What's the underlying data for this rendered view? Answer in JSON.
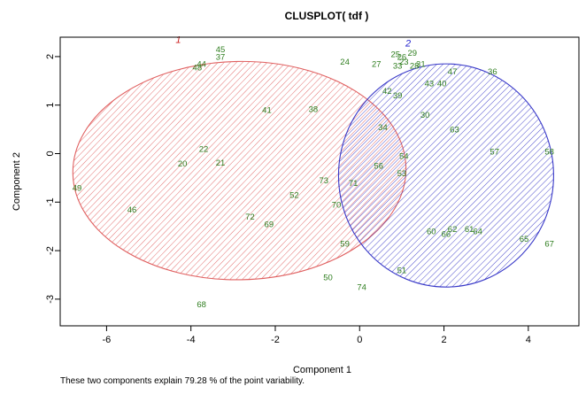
{
  "chart_data": {
    "type": "scatter",
    "title": "CLUSPLOT( tdf )",
    "xlabel": "Component 1",
    "ylabel": "Component 2",
    "xlim": [
      -7.1,
      5.2
    ],
    "ylim": [
      -3.55,
      2.4
    ],
    "xticks": [
      "-6",
      "-4",
      "-2",
      "0",
      "2",
      "4"
    ],
    "yticks": [
      "-3",
      "-2",
      "-1",
      "0",
      "1",
      "2"
    ],
    "grid": false,
    "footnote": "These two components explain 79.28 % of the point variability.",
    "colors": {
      "cluster1": "#e06060",
      "cluster2": "#3838c8",
      "cluster1_label": "#cc2222",
      "cluster2_label": "#2222cc",
      "points": "#2e7d1e"
    },
    "clusters": [
      {
        "label": "1",
        "center": [
          -2.85,
          -0.35
        ],
        "rx": 3.95,
        "ry": 2.25,
        "rotation_deg": -1,
        "label_pos": [
          -4.3,
          2.35
        ]
      },
      {
        "label": "2",
        "center": [
          2.05,
          -0.45
        ],
        "rx": 2.55,
        "ry": 2.3,
        "rotation_deg": 0,
        "label_pos": [
          1.15,
          2.28
        ]
      }
    ],
    "points": [
      {
        "label": "45",
        "x": -3.3,
        "y": 2.15
      },
      {
        "label": "37",
        "x": -3.3,
        "y": 2.0
      },
      {
        "label": "44",
        "x": -3.75,
        "y": 1.85
      },
      {
        "label": "48",
        "x": -3.85,
        "y": 1.78
      },
      {
        "label": "41",
        "x": -2.2,
        "y": 0.9
      },
      {
        "label": "22",
        "x": -3.7,
        "y": 0.1
      },
      {
        "label": "20",
        "x": -4.2,
        "y": -0.2
      },
      {
        "label": "21",
        "x": -3.3,
        "y": -0.18
      },
      {
        "label": "49",
        "x": -6.7,
        "y": -0.7
      },
      {
        "label": "46",
        "x": -5.4,
        "y": -1.15
      },
      {
        "label": "72",
        "x": -2.6,
        "y": -1.3
      },
      {
        "label": "69",
        "x": -2.15,
        "y": -1.45
      },
      {
        "label": "68",
        "x": -3.75,
        "y": -3.1
      },
      {
        "label": "38",
        "x": -1.1,
        "y": 0.92
      },
      {
        "label": "73",
        "x": -0.85,
        "y": -0.55
      },
      {
        "label": "71",
        "x": -0.15,
        "y": -0.6
      },
      {
        "label": "52",
        "x": -1.55,
        "y": -0.85
      },
      {
        "label": "70",
        "x": -0.55,
        "y": -1.05
      },
      {
        "label": "59",
        "x": -0.35,
        "y": -1.85
      },
      {
        "label": "50",
        "x": -0.75,
        "y": -2.55
      },
      {
        "label": "24",
        "x": -0.35,
        "y": 1.9
      },
      {
        "label": "27",
        "x": 0.4,
        "y": 1.85
      },
      {
        "label": "25",
        "x": 0.85,
        "y": 2.05
      },
      {
        "label": "26",
        "x": 1.0,
        "y": 2.0
      },
      {
        "label": "29",
        "x": 1.25,
        "y": 2.08
      },
      {
        "label": "23",
        "x": 1.05,
        "y": 1.9
      },
      {
        "label": "31",
        "x": 1.45,
        "y": 1.85
      },
      {
        "label": "33",
        "x": 0.9,
        "y": 1.82
      },
      {
        "label": "28",
        "x": 1.3,
        "y": 1.82
      },
      {
        "label": "47",
        "x": 2.2,
        "y": 1.7
      },
      {
        "label": "36",
        "x": 3.15,
        "y": 1.7
      },
      {
        "label": "43",
        "x": 1.65,
        "y": 1.45
      },
      {
        "label": "40",
        "x": 1.95,
        "y": 1.45
      },
      {
        "label": "42",
        "x": 0.65,
        "y": 1.3
      },
      {
        "label": "39",
        "x": 0.9,
        "y": 1.2
      },
      {
        "label": "30",
        "x": 1.55,
        "y": 0.8
      },
      {
        "label": "34",
        "x": 0.55,
        "y": 0.55
      },
      {
        "label": "63",
        "x": 2.25,
        "y": 0.5
      },
      {
        "label": "57",
        "x": 3.2,
        "y": 0.05
      },
      {
        "label": "58",
        "x": 4.5,
        "y": 0.05
      },
      {
        "label": "54",
        "x": 1.05,
        "y": -0.05
      },
      {
        "label": "56",
        "x": 0.45,
        "y": -0.25
      },
      {
        "label": "53",
        "x": 1.0,
        "y": -0.4
      },
      {
        "label": "60",
        "x": 1.7,
        "y": -1.6
      },
      {
        "label": "66",
        "x": 2.05,
        "y": -1.65
      },
      {
        "label": "62",
        "x": 2.2,
        "y": -1.55
      },
      {
        "label": "61",
        "x": 2.6,
        "y": -1.55
      },
      {
        "label": "64",
        "x": 2.8,
        "y": -1.6
      },
      {
        "label": "65",
        "x": 3.9,
        "y": -1.75
      },
      {
        "label": "67",
        "x": 4.5,
        "y": -1.85
      },
      {
        "label": "51",
        "x": 1.0,
        "y": -2.4
      },
      {
        "label": "74",
        "x": 0.05,
        "y": -2.75
      }
    ]
  }
}
